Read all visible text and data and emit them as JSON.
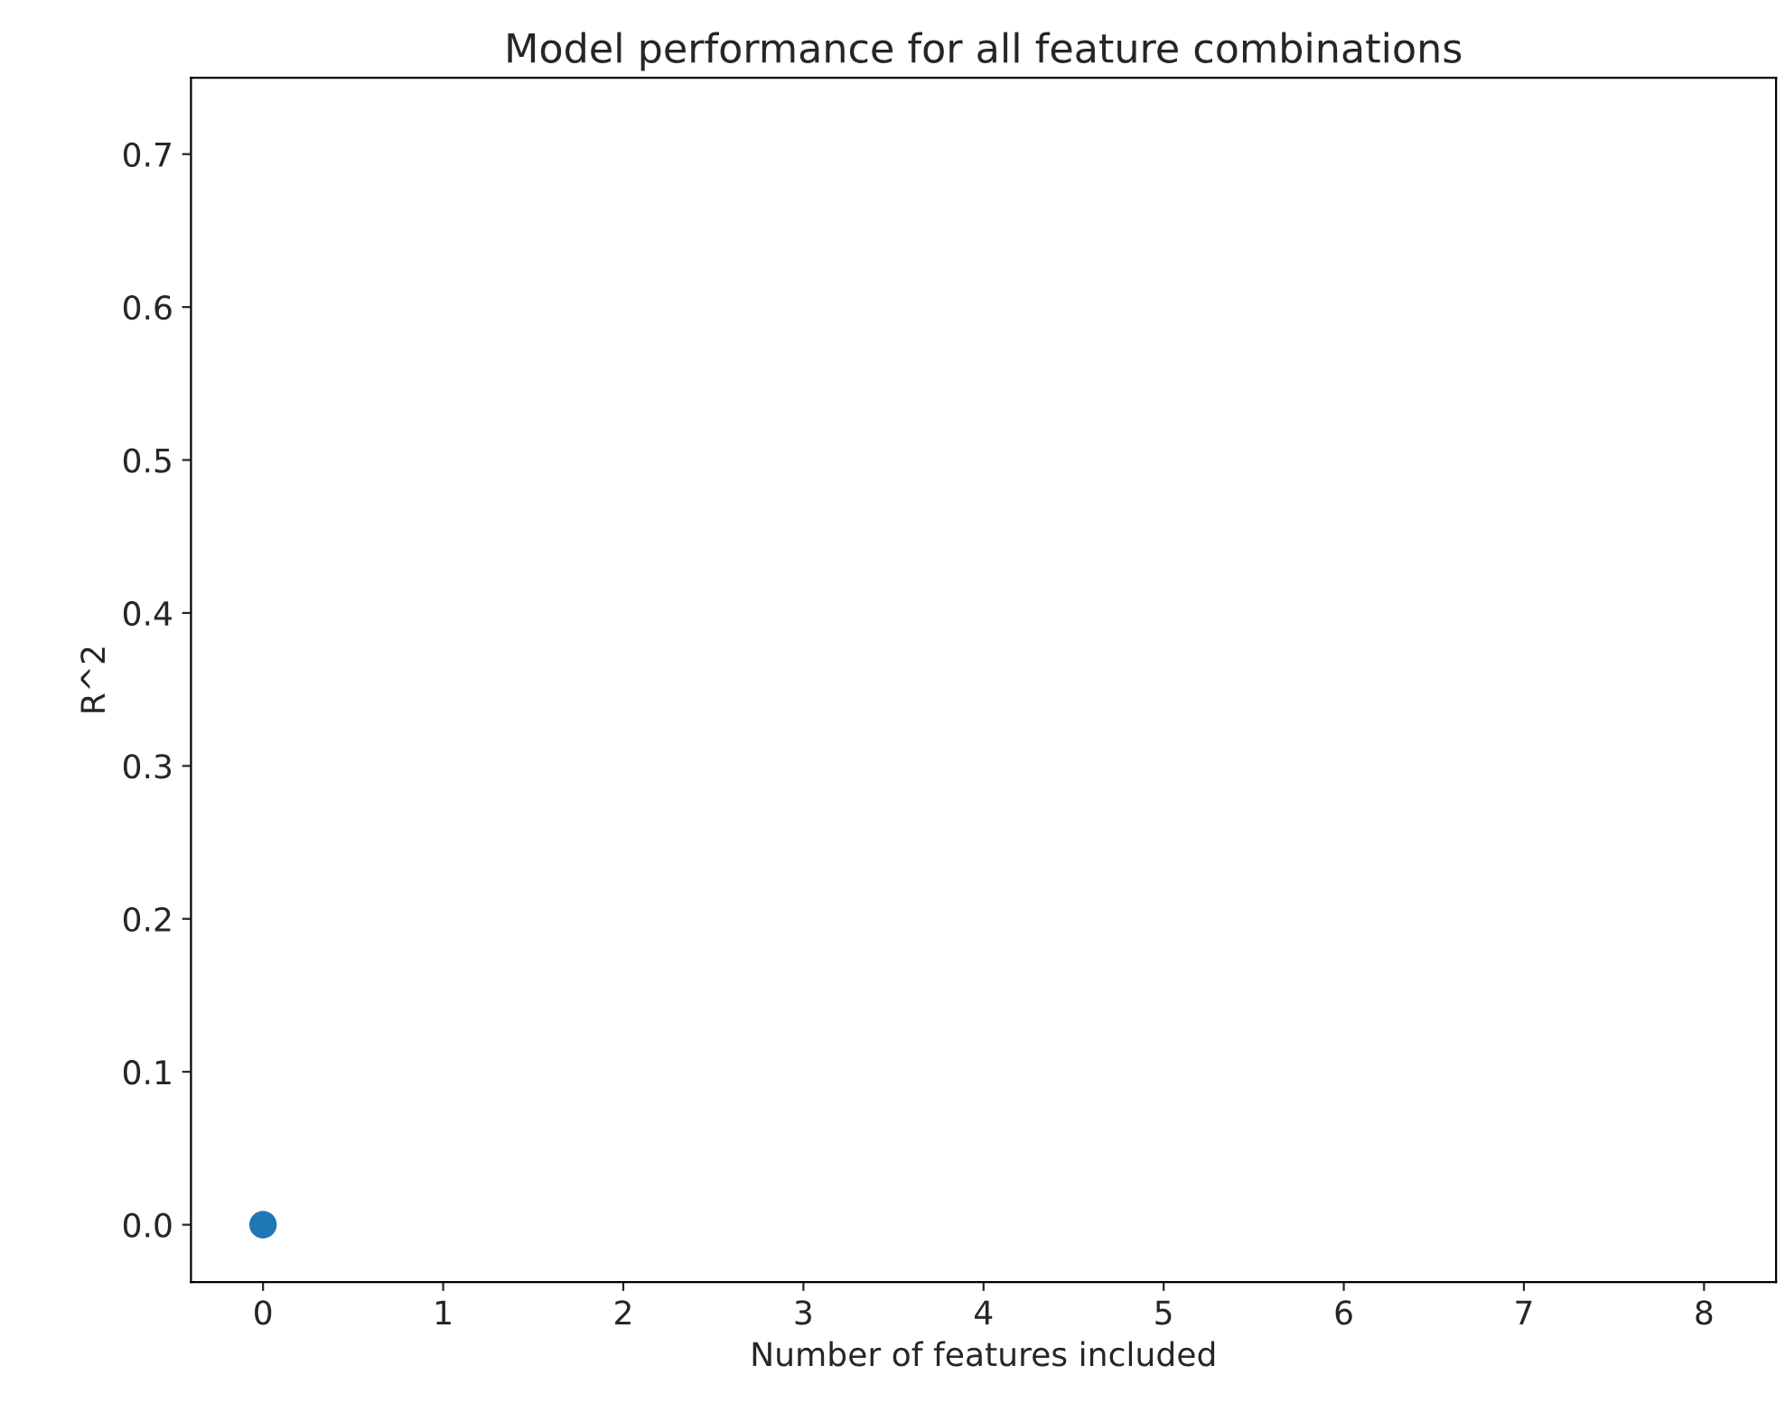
{
  "chart_data": {
    "type": "scatter",
    "title": "Model performance for all feature combinations",
    "xlabel": "Number of features included",
    "ylabel": "R^2",
    "x": [
      0
    ],
    "values": [
      0.0
    ],
    "color": "#1f77b4",
    "marker": "circle",
    "xlim": [
      -0.4,
      8.4
    ],
    "xticks": [
      0,
      1,
      2,
      3,
      4,
      5,
      6,
      7,
      8
    ],
    "ylim": [
      -0.0375,
      0.75
    ],
    "yticks": [
      {
        "value": 0,
        "label": "0.0"
      },
      0.1,
      0.2,
      0.3,
      0.4,
      0.5,
      0.6,
      0.7
    ],
    "grid": false
  }
}
